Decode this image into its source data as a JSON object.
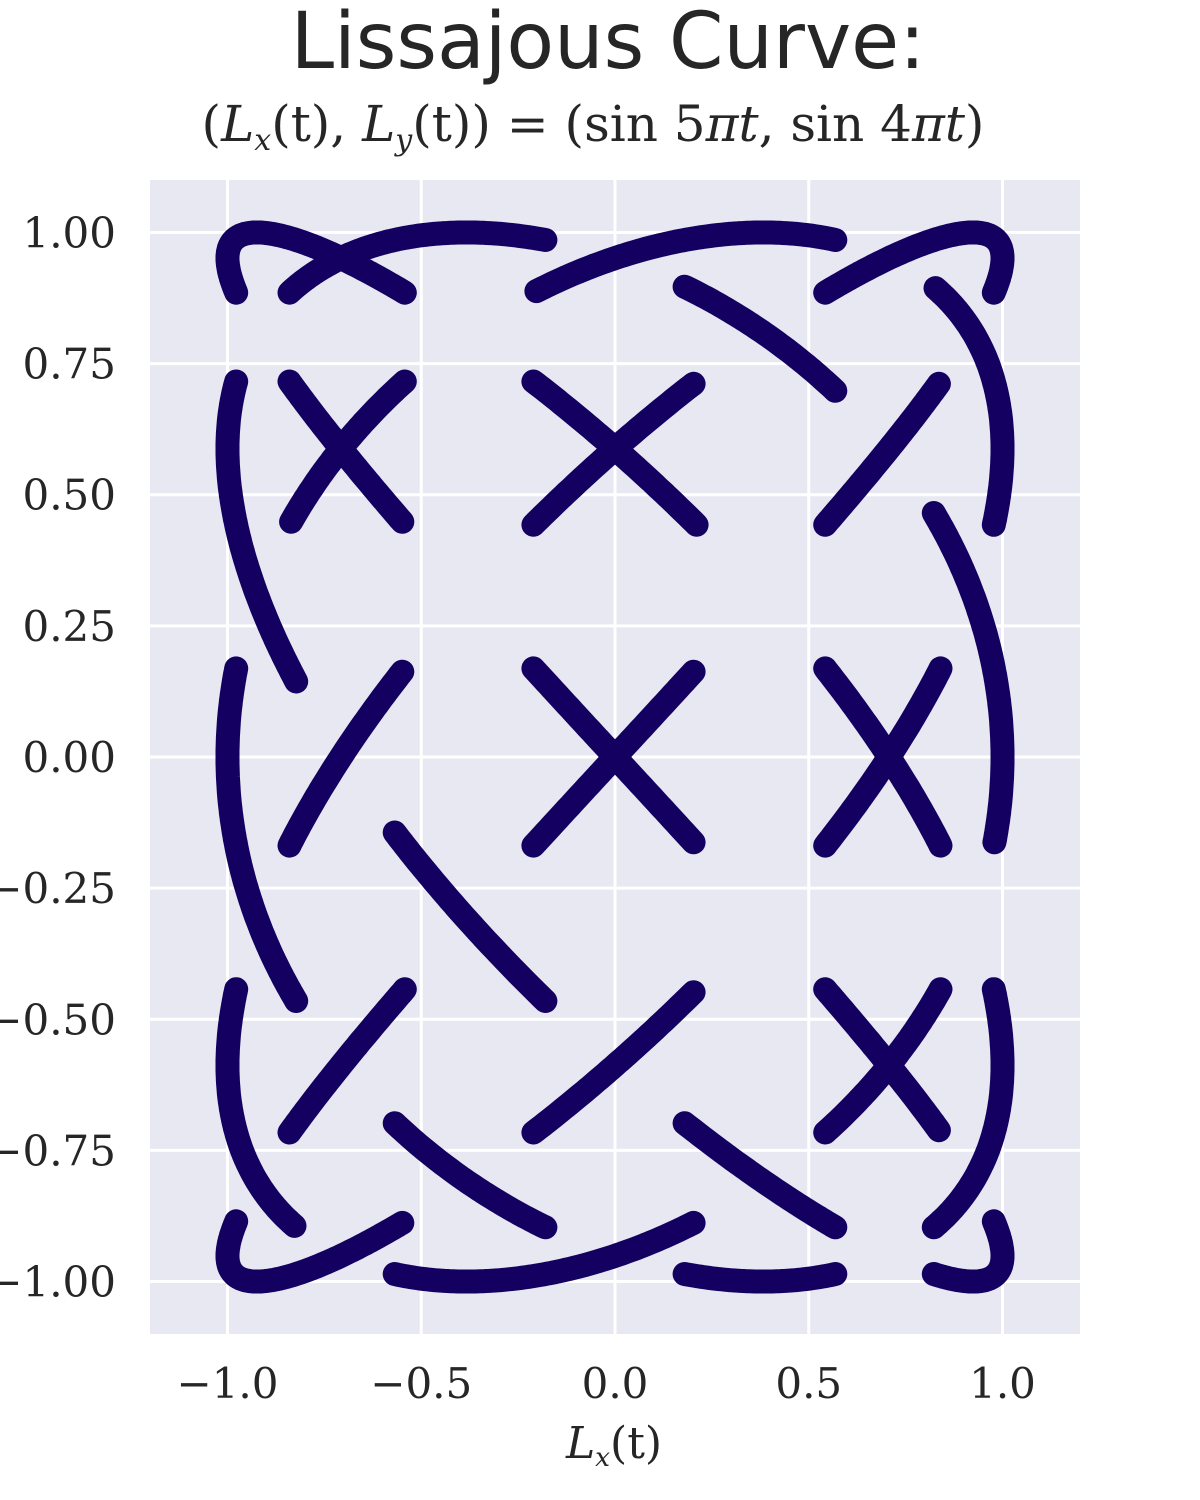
{
  "chart_data": {
    "type": "line",
    "title": "Lissajous Curve:",
    "subtitle": {
      "open": "(",
      "lx": "L",
      "lx_sub": "x",
      "lx_arg": "(t), ",
      "ly": "L",
      "ly_sub": "y",
      "ly_arg": "(t)",
      "close": ")",
      "equals": " = (sin 5",
      "pi1": "π",
      "t1": "t",
      "mid": ",  sin 4",
      "pi2": "π",
      "t2": "t",
      "end": ")"
    },
    "xlabel": {
      "main": "L",
      "sub": "x",
      "arg": "(t)"
    },
    "ylabel": "",
    "equation": {
      "x_freq": 5,
      "y_freq": 4
    },
    "t_range": [
      0,
      2
    ],
    "x_ticks": [
      "−1.0",
      "−0.5",
      "0.0",
      "0.5",
      "1.0"
    ],
    "x_tick_values": [
      -1.0,
      -0.5,
      0.0,
      0.5,
      1.0
    ],
    "y_ticks": [
      "1.00",
      "0.75",
      "0.50",
      "0.25",
      "0.00",
      "−0.25",
      "−0.50",
      "−0.75",
      "−1.00"
    ],
    "y_tick_values": [
      1.0,
      0.75,
      0.5,
      0.25,
      0.0,
      -0.25,
      -0.5,
      -0.75,
      -1.0
    ],
    "xlim": [
      -1.2,
      1.2
    ],
    "ylim": [
      -1.1,
      1.1
    ],
    "grid": true,
    "style": "over-under braided knot (gaps at crossings)",
    "colors": {
      "line": "#140060",
      "background": "#e8e8f2",
      "grid": "#ffffff"
    }
  }
}
